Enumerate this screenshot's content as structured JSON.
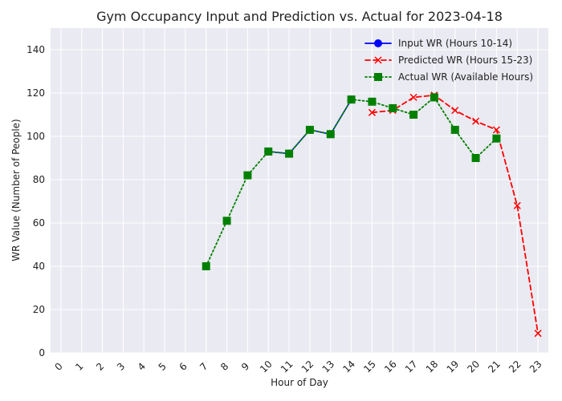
{
  "chart_data": {
    "type": "line",
    "title": "Gym Occupancy Input and Prediction vs. Actual for 2023-04-18",
    "xlabel": "Hour of Day",
    "ylabel": "WR Value (Number of People)",
    "x_ticks": [
      0,
      1,
      2,
      3,
      4,
      5,
      6,
      7,
      8,
      9,
      10,
      11,
      12,
      13,
      14,
      15,
      16,
      17,
      18,
      19,
      20,
      21,
      22,
      23
    ],
    "y_ticks": [
      0,
      20,
      40,
      60,
      80,
      100,
      120,
      140
    ],
    "xlim": [
      -0.5,
      23.5
    ],
    "ylim": [
      0,
      150
    ],
    "grid": true,
    "legend_position": "top-right",
    "series": [
      {
        "name": "Input WR (Hours 10-14)",
        "color": "#0000ff",
        "line_style": "solid",
        "marker": "circle",
        "x": [
          10,
          11,
          12,
          13,
          14
        ],
        "y": [
          93,
          92,
          103,
          101,
          117
        ]
      },
      {
        "name": "Predicted WR (Hours 15-23)",
        "color": "#ff0000",
        "line_style": "dashed",
        "marker": "x",
        "x": [
          15,
          16,
          17,
          18,
          19,
          20,
          21,
          22,
          23
        ],
        "y": [
          111,
          112,
          118,
          119,
          112,
          107,
          103,
          68,
          9
        ]
      },
      {
        "name": "Actual WR (Available Hours)",
        "color": "#008000",
        "line_style": "dotted",
        "marker": "square",
        "x": [
          7,
          8,
          9,
          10,
          11,
          12,
          13,
          14,
          15,
          16,
          17,
          18,
          19,
          20,
          21
        ],
        "y": [
          40,
          61,
          82,
          93,
          92,
          103,
          101,
          117,
          116,
          113,
          110,
          118,
          103,
          90,
          99
        ]
      }
    ]
  }
}
